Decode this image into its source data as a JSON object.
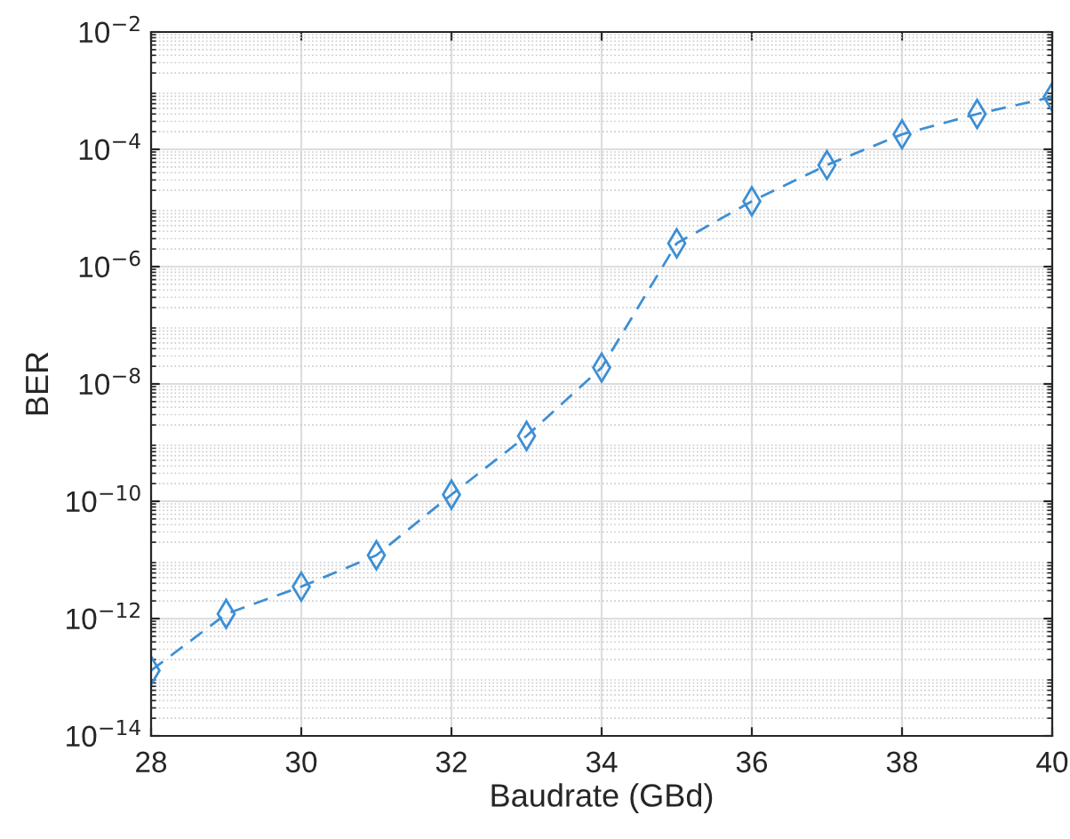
{
  "chart_data": {
    "type": "line",
    "xlabel": "Baudrate (GBd)",
    "ylabel": "BER",
    "x": [
      28,
      29,
      30,
      31,
      32,
      33,
      34,
      35,
      36,
      37,
      38,
      39,
      40
    ],
    "series": [
      {
        "color": "#3d8fd4",
        "values": [
          1.3e-13,
          1.2e-12,
          3.5e-12,
          1.2e-11,
          1.3e-10,
          1.3e-09,
          1.9e-08,
          2.5e-06,
          1.3e-05,
          5.4e-05,
          0.00018,
          0.0004,
          0.00078
        ]
      }
    ],
    "log": "y",
    "grid": true,
    "marker": "diamond",
    "line_style": "dashed",
    "xlim": [
      28,
      40
    ],
    "xticks": [
      28,
      30,
      32,
      34,
      36,
      38,
      40
    ],
    "ylim": [
      1e-14,
      0.01
    ],
    "yticks": [
      {
        "value": 1e-14,
        "label": "10$^{−14}$"
      },
      {
        "value": 1e-12,
        "label": "10$^{−12}$"
      },
      {
        "value": 1e-10,
        "label": "10$^{−10}$"
      },
      {
        "value": 1e-08,
        "label": "10$^{−8}$"
      },
      {
        "value": 1e-06,
        "label": "10$^{−6}$"
      },
      {
        "value": 0.0001,
        "label": "10$^{−4}$"
      },
      {
        "value": 0.01,
        "label": "10$^{−2}$"
      }
    ]
  }
}
